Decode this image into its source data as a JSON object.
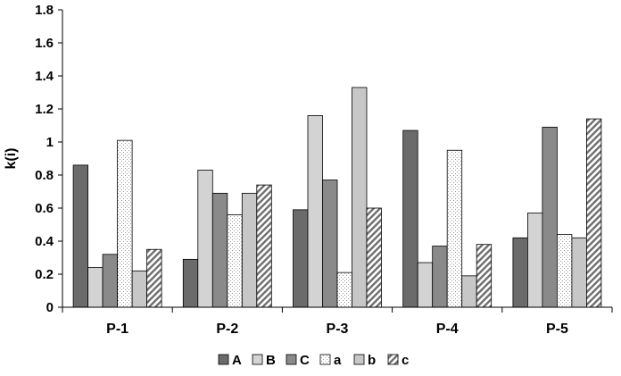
{
  "chart_data": {
    "type": "bar",
    "title": "",
    "xlabel": "",
    "ylabel": "k(i)",
    "ylim": [
      0,
      1.8
    ],
    "yticks": [
      "0",
      "0.2",
      "0.4",
      "0.6",
      "0.8",
      "1",
      "1.2",
      "1.4",
      "1.6",
      "1.8"
    ],
    "grid": false,
    "legend_position": "bottom",
    "categories": [
      "P-1",
      "P-2",
      "P-3",
      "P-4",
      "P-5"
    ],
    "series": [
      {
        "name": "A",
        "values": [
          0.86,
          0.29,
          0.59,
          1.07,
          0.42
        ]
      },
      {
        "name": "B",
        "values": [
          0.24,
          0.83,
          1.16,
          0.27,
          0.57
        ]
      },
      {
        "name": "C",
        "values": [
          0.32,
          0.69,
          0.77,
          0.37,
          1.09
        ]
      },
      {
        "name": "a",
        "values": [
          1.01,
          0.56,
          0.21,
          0.95,
          0.44
        ]
      },
      {
        "name": "b",
        "values": [
          0.22,
          0.69,
          1.33,
          0.19,
          0.42
        ]
      },
      {
        "name": "c",
        "values": [
          0.35,
          0.74,
          0.6,
          0.38,
          1.14
        ]
      }
    ]
  }
}
